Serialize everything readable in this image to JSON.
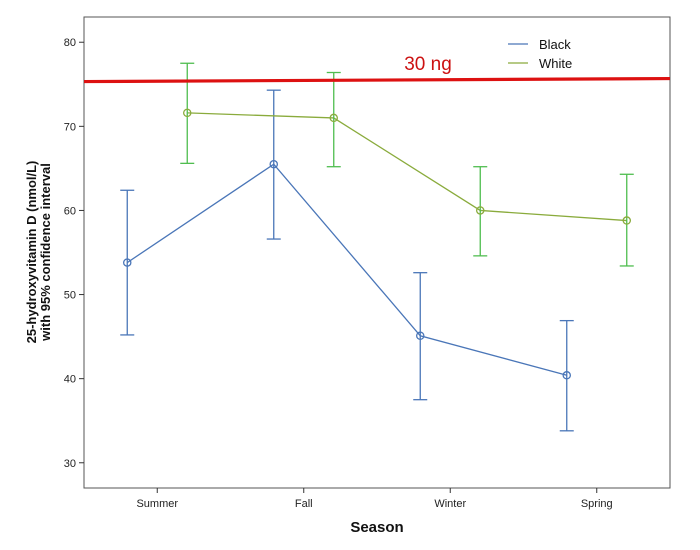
{
  "chart_data": {
    "type": "line",
    "title": "",
    "xlabel": "Season",
    "ylabel_line1": "25-hydroxyvitamin D (nmol/L)",
    "ylabel_line2": "with 95% confidence interval",
    "categories": [
      "Summer",
      "Fall",
      "Winter",
      "Spring"
    ],
    "ylim": [
      27,
      83
    ],
    "yticks": [
      30,
      40,
      50,
      60,
      70,
      80
    ],
    "grid": false,
    "legend_position": "top-right",
    "series": [
      {
        "name": "Black",
        "color": "#4a76b8",
        "values": [
          53.8,
          65.5,
          45.1,
          40.4
        ],
        "ci_low": [
          45.2,
          56.6,
          37.5,
          33.8
        ],
        "ci_high": [
          62.4,
          74.3,
          52.6,
          46.9
        ]
      },
      {
        "name": "White",
        "color": "#8aab3c",
        "ci_color": "#4fbd4f",
        "values": [
          71.6,
          71.0,
          60.0,
          58.8
        ],
        "ci_low": [
          65.6,
          65.2,
          54.6,
          53.4
        ],
        "ci_high": [
          77.5,
          76.4,
          65.2,
          64.3
        ]
      }
    ],
    "reference_line": {
      "label": "30 ng",
      "value": 75.5,
      "color": "#dd1111"
    }
  }
}
